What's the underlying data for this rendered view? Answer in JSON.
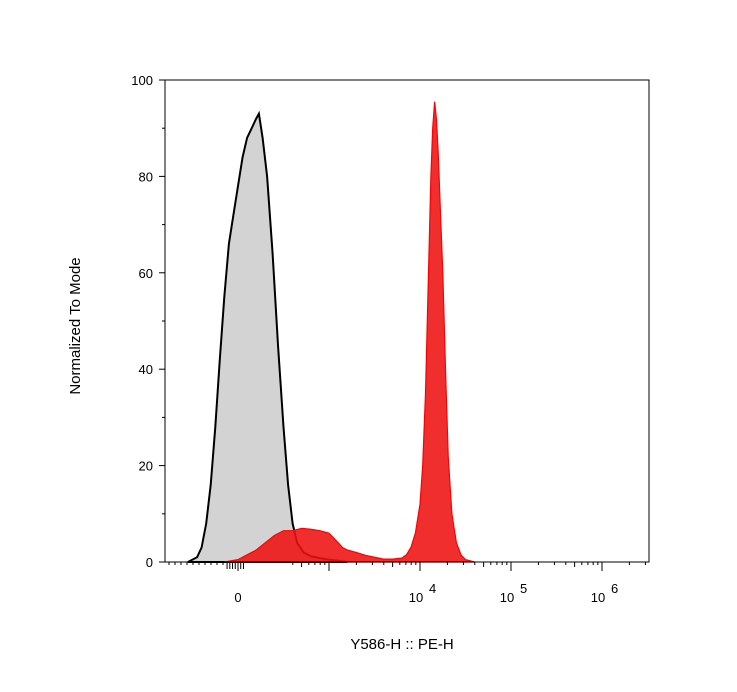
{
  "chart_data": {
    "type": "area",
    "title": "",
    "xlabel": "Y586-H :: PE-H",
    "ylabel": "Normalized To Mode",
    "ylim": [
      0,
      100
    ],
    "y_ticks": [
      0,
      20,
      40,
      60,
      80,
      100
    ],
    "x_scale": "biexponential",
    "x_tick_labels": [
      {
        "base": "0",
        "exp": ""
      },
      {
        "base": "10",
        "exp": "4"
      },
      {
        "base": "10",
        "exp": "5"
      },
      {
        "base": "10",
        "exp": "6"
      }
    ],
    "legend": "none",
    "grid": false,
    "series": [
      {
        "fill": "#d3d3d3",
        "stroke": "#000000",
        "points": [
          [
            -0.55,
            0
          ],
          [
            -0.45,
            1
          ],
          [
            -0.4,
            3
          ],
          [
            -0.35,
            8
          ],
          [
            -0.3,
            16
          ],
          [
            -0.25,
            28
          ],
          [
            -0.2,
            42
          ],
          [
            -0.15,
            55
          ],
          [
            -0.1,
            66
          ],
          [
            -0.05,
            72
          ],
          [
            0.0,
            78
          ],
          [
            0.05,
            84
          ],
          [
            0.1,
            88
          ],
          [
            0.15,
            90
          ],
          [
            0.2,
            92
          ],
          [
            0.23,
            93
          ],
          [
            0.27,
            88
          ],
          [
            0.32,
            80
          ],
          [
            0.38,
            64
          ],
          [
            0.44,
            45
          ],
          [
            0.5,
            28
          ],
          [
            0.55,
            16
          ],
          [
            0.6,
            8
          ],
          [
            0.65,
            4
          ],
          [
            0.72,
            2
          ],
          [
            0.8,
            1.2
          ],
          [
            0.9,
            0.8
          ],
          [
            1.0,
            0.5
          ],
          [
            1.1,
            0.3
          ],
          [
            1.2,
            0
          ]
        ]
      },
      {
        "fill": "#ee1111",
        "stroke": "#ff0000",
        "points": [
          [
            -0.15,
            0
          ],
          [
            0.0,
            0.5
          ],
          [
            0.1,
            1.5
          ],
          [
            0.2,
            2.5
          ],
          [
            0.3,
            4
          ],
          [
            0.4,
            5.5
          ],
          [
            0.5,
            6.5
          ],
          [
            0.6,
            6.5
          ],
          [
            0.7,
            7
          ],
          [
            0.8,
            6.8
          ],
          [
            0.9,
            6.5
          ],
          [
            1.0,
            6
          ],
          [
            1.05,
            5
          ],
          [
            1.1,
            4
          ],
          [
            1.15,
            3
          ],
          [
            1.2,
            2.5
          ],
          [
            1.3,
            2
          ],
          [
            1.4,
            1.4
          ],
          [
            1.5,
            1
          ],
          [
            1.6,
            0.6
          ],
          [
            1.7,
            0.6
          ],
          [
            1.8,
            0.8
          ],
          [
            1.85,
            1.5
          ],
          [
            1.9,
            3
          ],
          [
            1.95,
            6
          ],
          [
            2.0,
            12
          ],
          [
            2.03,
            20
          ],
          [
            2.06,
            35
          ],
          [
            2.08,
            50
          ],
          [
            2.1,
            65
          ],
          [
            2.12,
            80
          ],
          [
            2.14,
            90
          ],
          [
            2.16,
            95.5
          ],
          [
            2.18,
            92
          ],
          [
            2.2,
            85
          ],
          [
            2.22,
            75
          ],
          [
            2.25,
            60
          ],
          [
            2.28,
            40
          ],
          [
            2.31,
            22
          ],
          [
            2.35,
            10
          ],
          [
            2.4,
            4
          ],
          [
            2.45,
            1.5
          ],
          [
            2.5,
            0.5
          ],
          [
            2.6,
            0
          ]
        ]
      }
    ]
  }
}
